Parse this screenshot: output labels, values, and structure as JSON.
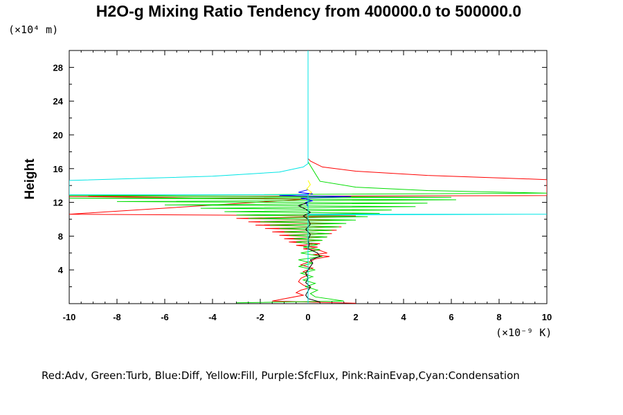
{
  "chart_data": {
    "type": "line",
    "title": "H2O-g Mixing Ratio Tendency from 400000.0 to 500000.0",
    "ylabel": "Height",
    "xlabel": "",
    "y_unit_label": "(×10⁴ m)",
    "x_unit_label": "(×10⁻⁹ K)",
    "xlim": [
      -10,
      10
    ],
    "ylim": [
      0,
      30
    ],
    "x_ticks": [
      -10,
      -8,
      -6,
      -4,
      -2,
      0,
      2,
      4,
      6,
      8,
      10
    ],
    "y_ticks": [
      4,
      8,
      12,
      16,
      20,
      24,
      28
    ],
    "x_tick_labels": [
      "-10",
      "-8",
      "-6",
      "-4",
      "-2",
      "0",
      "2",
      "4",
      "6",
      "8",
      "10"
    ],
    "y_tick_labels": [
      "4",
      "8",
      "12",
      "16",
      "20",
      "24",
      "28"
    ],
    "grid": false,
    "legend_text": "Red:Adv, Green:Turb, Blue:Diff, Yellow:Fill, Purple:SfcFlux, Pink:RainEvap,Cyan:Condensation",
    "legend_position": "bottom",
    "series": [
      {
        "color": "#ff0000",
        "points": [
          [
            0,
            30
          ],
          [
            0,
            17.2
          ],
          [
            0.1,
            16.9
          ],
          [
            0.6,
            16.2
          ],
          [
            2,
            15.7
          ],
          [
            5,
            15.2
          ],
          [
            8,
            14.9
          ],
          [
            10,
            14.7
          ],
          [
            10,
            12.8
          ],
          [
            -10,
            12.7
          ],
          [
            0,
            12.4
          ],
          [
            -10,
            10.6
          ],
          [
            2,
            10.4
          ],
          [
            -3,
            10.1
          ],
          [
            1.5,
            9.9
          ],
          [
            -2.5,
            9.7
          ],
          [
            1.3,
            9.5
          ],
          [
            -2.2,
            9.3
          ],
          [
            1.4,
            9.1
          ],
          [
            -1.8,
            8.9
          ],
          [
            1.2,
            8.7
          ],
          [
            -1.5,
            8.5
          ],
          [
            1,
            8.3
          ],
          [
            -1.2,
            8.1
          ],
          [
            0.8,
            7.9
          ],
          [
            -1,
            7.7
          ],
          [
            0.6,
            7.5
          ],
          [
            -0.8,
            7.3
          ],
          [
            0.5,
            7.1
          ],
          [
            -0.5,
            6.9
          ],
          [
            0.4,
            6.7
          ],
          [
            -0.2,
            6.5
          ],
          [
            0.5,
            6.3
          ],
          [
            0.8,
            6.0
          ],
          [
            0.2,
            5.8
          ],
          [
            0.9,
            5.6
          ],
          [
            0.3,
            5.3
          ],
          [
            0.1,
            5.0
          ],
          [
            -0.3,
            4.6
          ],
          [
            0.2,
            4.2
          ],
          [
            -0.2,
            3.8
          ],
          [
            0,
            3.4
          ],
          [
            -0.3,
            3.0
          ],
          [
            -0.4,
            2.6
          ],
          [
            -0.2,
            2.2
          ],
          [
            0.1,
            1.9
          ],
          [
            -0.3,
            1.6
          ],
          [
            -0.5,
            1.3
          ],
          [
            -0.2,
            1.0
          ],
          [
            -1.5,
            0.3
          ],
          [
            0,
            0.2
          ],
          [
            2,
            0.05
          ]
        ]
      },
      {
        "color": "#00dd00",
        "points": [
          [
            0,
            30
          ],
          [
            0,
            16.8
          ],
          [
            0.5,
            14.5
          ],
          [
            2,
            13.8
          ],
          [
            5,
            13.4
          ],
          [
            10,
            13.1
          ],
          [
            -10,
            12.8
          ],
          [
            6,
            12.6
          ],
          [
            -10,
            12.5
          ],
          [
            6.2,
            12.3
          ],
          [
            -8,
            12.1
          ],
          [
            5,
            11.9
          ],
          [
            -6,
            11.7
          ],
          [
            4.5,
            11.5
          ],
          [
            -4.5,
            11.3
          ],
          [
            3.5,
            11.1
          ],
          [
            -3.5,
            10.9
          ],
          [
            3,
            10.7
          ],
          [
            -3,
            10.5
          ],
          [
            2.5,
            10.3
          ],
          [
            -2.5,
            10.1
          ],
          [
            2,
            9.9
          ],
          [
            -2,
            9.7
          ],
          [
            1.6,
            9.5
          ],
          [
            -1.6,
            9.3
          ],
          [
            1.3,
            9.1
          ],
          [
            -1.2,
            8.9
          ],
          [
            1,
            8.7
          ],
          [
            -1,
            8.5
          ],
          [
            0.9,
            8.3
          ],
          [
            -0.8,
            8.1
          ],
          [
            0.8,
            7.9
          ],
          [
            -0.6,
            7.7
          ],
          [
            0.6,
            7.5
          ],
          [
            -0.5,
            7.3
          ],
          [
            0.4,
            7.0
          ],
          [
            -0.2,
            6.7
          ],
          [
            0.5,
            6.4
          ],
          [
            -0.3,
            6.0
          ],
          [
            0.6,
            5.6
          ],
          [
            -0.4,
            5.2
          ],
          [
            0.2,
            4.8
          ],
          [
            -0.4,
            4.4
          ],
          [
            0.3,
            4.0
          ],
          [
            -0.3,
            3.6
          ],
          [
            0.2,
            3.2
          ],
          [
            -0.2,
            2.8
          ],
          [
            0.3,
            2.4
          ],
          [
            -0.1,
            2.0
          ],
          [
            0.4,
            1.6
          ],
          [
            0.1,
            1.2
          ],
          [
            0.3,
            0.8
          ],
          [
            1.5,
            0.3
          ],
          [
            -3,
            0.1
          ]
        ]
      },
      {
        "color": "#0000ff",
        "points": [
          [
            0,
            13.5
          ],
          [
            -0.4,
            13.2
          ],
          [
            0.2,
            13.0
          ],
          [
            -1.2,
            12.8
          ],
          [
            1.8,
            12.7
          ],
          [
            -0.3,
            12.5
          ],
          [
            0.2,
            12.2
          ],
          [
            -0.1,
            12.0
          ],
          [
            0,
            11.5
          ]
        ]
      },
      {
        "color": "#ffff00",
        "points": [
          [
            0,
            14.6
          ],
          [
            0.1,
            14.1
          ],
          [
            -0.05,
            13.6
          ],
          [
            0.15,
            13.2
          ],
          [
            0,
            12.8
          ]
        ]
      },
      {
        "color": "#000000",
        "points": [
          [
            0,
            12.0
          ],
          [
            -0.4,
            11.6
          ],
          [
            -0.1,
            11.2
          ],
          [
            0.1,
            10.8
          ],
          [
            -0.2,
            10.4
          ],
          [
            0,
            10.0
          ],
          [
            0.1,
            9.4
          ],
          [
            -0.1,
            8.8
          ],
          [
            0.1,
            8.2
          ],
          [
            0,
            7.6
          ],
          [
            0.05,
            7.0
          ],
          [
            0,
            6.5
          ],
          [
            0.4,
            6.0
          ],
          [
            0.5,
            5.6
          ],
          [
            0.1,
            5.2
          ],
          [
            0.2,
            4.8
          ],
          [
            0.1,
            4.4
          ],
          [
            0,
            4.0
          ],
          [
            -0.1,
            3.6
          ],
          [
            0,
            3.0
          ],
          [
            -0.1,
            2.5
          ],
          [
            0.1,
            2.0
          ],
          [
            0,
            1.5
          ],
          [
            -0.1,
            1.0
          ],
          [
            0,
            0.6
          ],
          [
            0.5,
            0.2
          ]
        ]
      },
      {
        "color": "#00e5e5",
        "points": [
          [
            0,
            30
          ],
          [
            0,
            16.6
          ],
          [
            -0.2,
            16.2
          ],
          [
            -1.2,
            15.6
          ],
          [
            -4,
            15.1
          ],
          [
            -7.5,
            14.8
          ],
          [
            -10,
            14.6
          ],
          [
            -10,
            12.9
          ],
          [
            0,
            12.9
          ],
          [
            0,
            10.6
          ],
          [
            10,
            10.6
          ],
          [
            0,
            10.5
          ],
          [
            0,
            0
          ]
        ]
      }
    ]
  }
}
